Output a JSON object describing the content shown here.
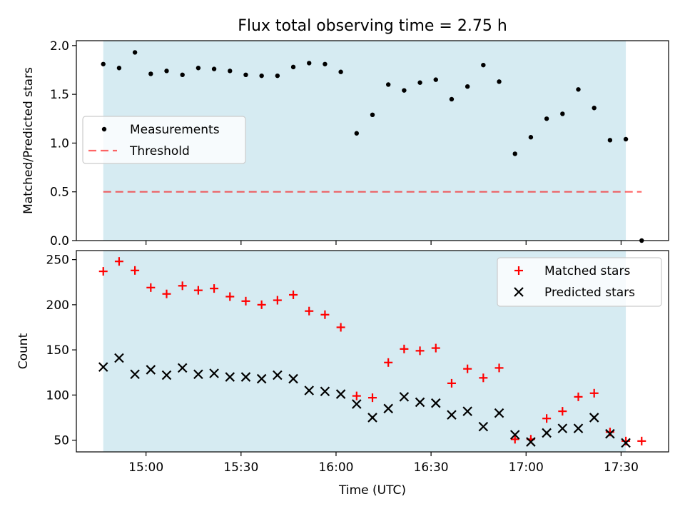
{
  "title": "Flux total observing time = 2.75 h",
  "colors": {
    "shade": "#add8e6",
    "threshold": "#ff0000",
    "matched": "#ff0000",
    "predicted": "#000000",
    "measurement": "#000000"
  },
  "chart_data": [
    {
      "type": "scatter",
      "ylabel": "Matched/Predicted stars",
      "ylim": [
        0,
        2.05
      ],
      "yticks": [
        0.0,
        0.5,
        1.0,
        1.5,
        2.0
      ],
      "ytick_labels": [
        "0.0",
        "0.5",
        "1.0",
        "1.5",
        "2.0"
      ],
      "xlim_minutes": [
        -22,
        165
      ],
      "observing_window_minutes": [
        -13.5,
        151.5
      ],
      "legend": {
        "position": "center-left",
        "entries": [
          "Measurements",
          "Threshold"
        ]
      },
      "threshold": {
        "name": "Threshold",
        "value": 0.5,
        "x_minutes": [
          -13.5,
          156.5
        ]
      },
      "series": [
        {
          "name": "Measurements",
          "x_minutes": [
            -13.5,
            -8.5,
            -3.5,
            1.5,
            6.5,
            11.5,
            16.5,
            21.5,
            26.5,
            31.5,
            36.5,
            41.5,
            46.5,
            51.5,
            56.5,
            61.5,
            66.5,
            71.5,
            76.5,
            81.5,
            86.5,
            91.5,
            96.5,
            101.5,
            106.5,
            111.5,
            116.5,
            121.5,
            126.5,
            131.5,
            136.5,
            141.5,
            146.5,
            151.5,
            156.5
          ],
          "values": [
            1.81,
            1.77,
            1.93,
            1.71,
            1.74,
            1.7,
            1.77,
            1.76,
            1.74,
            1.7,
            1.69,
            1.69,
            1.78,
            1.82,
            1.81,
            1.73,
            1.1,
            1.29,
            1.6,
            1.54,
            1.62,
            1.65,
            1.45,
            1.58,
            1.8,
            1.63,
            0.89,
            1.06,
            1.25,
            1.3,
            1.55,
            1.36,
            1.03,
            1.04,
            0.0
          ]
        }
      ]
    },
    {
      "type": "scatter",
      "xlabel": "Time (UTC)",
      "ylabel": "Count",
      "ylim": [
        37,
        260
      ],
      "yticks": [
        50,
        100,
        150,
        200,
        250
      ],
      "ytick_labels": [
        "50",
        "100",
        "150",
        "200",
        "250"
      ],
      "xlim_minutes": [
        -22,
        165
      ],
      "xticks_minutes": [
        0,
        30,
        60,
        90,
        120,
        150
      ],
      "xtick_labels": [
        "15:00",
        "15:30",
        "16:00",
        "16:30",
        "17:00",
        "17:30"
      ],
      "observing_window_minutes": [
        -13.5,
        151.5
      ],
      "legend": {
        "position": "top-right",
        "entries": [
          "Matched stars",
          "Predicted stars"
        ]
      },
      "series": [
        {
          "name": "Matched stars",
          "marker": "plus",
          "x_minutes": [
            -13.5,
            -8.5,
            -3.5,
            1.5,
            6.5,
            11.5,
            16.5,
            21.5,
            26.5,
            31.5,
            36.5,
            41.5,
            46.5,
            51.5,
            56.5,
            61.5,
            66.5,
            71.5,
            76.5,
            81.5,
            86.5,
            91.5,
            96.5,
            101.5,
            106.5,
            111.5,
            116.5,
            121.5,
            126.5,
            131.5,
            136.5,
            141.5,
            146.5,
            151.5,
            156.5
          ],
          "values": [
            237,
            248,
            238,
            219,
            212,
            221,
            216,
            218,
            209,
            204,
            200,
            205,
            211,
            193,
            189,
            175,
            99,
            97,
            136,
            151,
            149,
            152,
            113,
            129,
            119,
            130,
            51,
            51,
            74,
            82,
            98,
            102,
            59,
            49,
            49
          ]
        },
        {
          "name": "Predicted stars",
          "marker": "x",
          "x_minutes": [
            -13.5,
            -8.5,
            -3.5,
            1.5,
            6.5,
            11.5,
            16.5,
            21.5,
            26.5,
            31.5,
            36.5,
            41.5,
            46.5,
            51.5,
            56.5,
            61.5,
            66.5,
            71.5,
            76.5,
            81.5,
            86.5,
            91.5,
            96.5,
            101.5,
            106.5,
            111.5,
            116.5,
            121.5,
            126.5,
            131.5,
            136.5,
            141.5,
            146.5,
            151.5
          ],
          "values": [
            131,
            141,
            123,
            128,
            122,
            130,
            123,
            124,
            120,
            120,
            118,
            122,
            118,
            105,
            104,
            101,
            90,
            75,
            85,
            98,
            92,
            91,
            78,
            82,
            65,
            80,
            56,
            48,
            58,
            63,
            63,
            75,
            57,
            47
          ]
        }
      ]
    }
  ]
}
